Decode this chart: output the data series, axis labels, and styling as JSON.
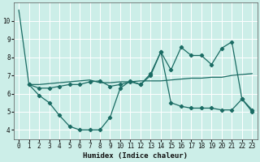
{
  "xlabel": "Humidex (Indice chaleur)",
  "bg_color": "#cceee8",
  "line_color": "#1a6b63",
  "grid_color": "#ffffff",
  "ylim": [
    3.5,
    11.0
  ],
  "xlim": [
    -0.5,
    23.5
  ],
  "line1_x": [
    0,
    1,
    2,
    3,
    4,
    5,
    6,
    7,
    8,
    9,
    10,
    11,
    12,
    13,
    14,
    15,
    16,
    17,
    18,
    19,
    20,
    21,
    22,
    23
  ],
  "line1_y": [
    10.6,
    6.5,
    6.5,
    6.55,
    6.6,
    6.65,
    6.7,
    6.75,
    6.6,
    6.6,
    6.65,
    6.65,
    6.7,
    6.7,
    6.7,
    6.75,
    6.8,
    6.85,
    6.85,
    6.9,
    6.9,
    7.0,
    7.05,
    7.1
  ],
  "line2_x": [
    1,
    2,
    3,
    4,
    5,
    6,
    7,
    8,
    9,
    10,
    11,
    12,
    13,
    14,
    15,
    16,
    17,
    18,
    19,
    20,
    21,
    22,
    23
  ],
  "line2_y": [
    6.5,
    5.9,
    5.5,
    4.8,
    4.2,
    4.0,
    4.0,
    4.0,
    4.7,
    6.3,
    6.7,
    6.5,
    7.0,
    8.3,
    5.5,
    5.3,
    5.2,
    5.2,
    5.2,
    5.1,
    5.1,
    5.7,
    5.1
  ],
  "line3_x": [
    1,
    2,
    3,
    4,
    5,
    6,
    7,
    8,
    9,
    10,
    11,
    12,
    13,
    14,
    15,
    16,
    17,
    18,
    19,
    20,
    21,
    22,
    23
  ],
  "line3_y": [
    6.5,
    6.3,
    6.3,
    6.4,
    6.5,
    6.5,
    6.65,
    6.7,
    6.4,
    6.5,
    6.65,
    6.5,
    7.1,
    8.3,
    7.3,
    8.55,
    8.1,
    8.1,
    7.6,
    8.5,
    8.85,
    5.7,
    5.0
  ],
  "yticks": [
    4,
    5,
    6,
    7,
    8,
    9,
    10
  ],
  "xticks": [
    0,
    1,
    2,
    3,
    4,
    5,
    6,
    7,
    8,
    9,
    10,
    11,
    12,
    13,
    14,
    15,
    16,
    17,
    18,
    19,
    20,
    21,
    22,
    23
  ],
  "tick_fontsize": 5.5,
  "xlabel_fontsize": 6.5
}
